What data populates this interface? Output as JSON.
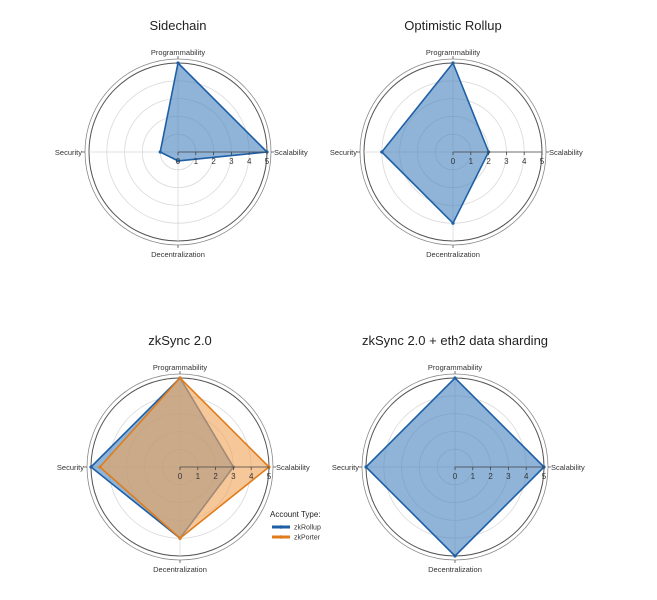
{
  "chart_data": [
    {
      "type": "radar",
      "title": "Sidechain",
      "axes": [
        "Programmability",
        "Scalability",
        "Decentralization",
        "Security"
      ],
      "range": [
        0,
        5
      ],
      "ticks": [
        "0",
        "1",
        "2",
        "3",
        "4",
        "5"
      ],
      "series": [
        {
          "values": [
            5,
            5,
            0.5,
            1
          ],
          "color": "#1f5fa6",
          "fill": "#4a86c0"
        }
      ]
    },
    {
      "type": "radar",
      "title": "Optimistic Rollup",
      "axes": [
        "Programmability",
        "Scalability",
        "Decentralization",
        "Security"
      ],
      "range": [
        0,
        5
      ],
      "ticks": [
        "0",
        "1",
        "2",
        "3",
        "4",
        "5"
      ],
      "series": [
        {
          "values": [
            5,
            2,
            4,
            4
          ],
          "color": "#1f5fa6",
          "fill": "#4a86c0"
        }
      ]
    },
    {
      "type": "radar",
      "title": "zkSync 2.0",
      "axes": [
        "Programmability",
        "Scalability",
        "Decentralization",
        "Security"
      ],
      "range": [
        0,
        5
      ],
      "ticks": [
        "0",
        "1",
        "2",
        "3",
        "4",
        "5"
      ],
      "legend": {
        "title": "Account Type:",
        "placement": "bottom-right"
      },
      "series": [
        {
          "name": "zkRollup",
          "values": [
            5,
            3,
            4,
            5
          ],
          "color": "#1f5fa6",
          "fill": "#4a86c0"
        },
        {
          "name": "zkPorter",
          "values": [
            5,
            5,
            4,
            4.5
          ],
          "color": "#e07c1a",
          "fill": "#f0a55a"
        }
      ]
    },
    {
      "type": "radar",
      "title": "zkSync 2.0 + eth2 data sharding",
      "axes": [
        "Programmability",
        "Scalability",
        "Decentralization",
        "Security"
      ],
      "range": [
        0,
        5
      ],
      "ticks": [
        "0",
        "1",
        "2",
        "3",
        "4",
        "5"
      ],
      "series": [
        {
          "values": [
            5,
            5,
            5,
            5
          ],
          "color": "#1f5fa6",
          "fill": "#4a86c0"
        }
      ]
    }
  ]
}
